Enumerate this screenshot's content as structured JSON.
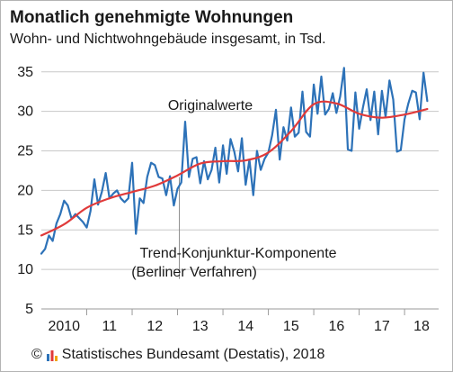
{
  "header": {
    "title": "Monatlich genehmigte Wohnungen",
    "subtitle": "Wohn- und Nichtwohngebäude insgesamt, in Tsd."
  },
  "footer": {
    "copyright_symbol": "©",
    "source_text": "Statistisches Bundesamt (Destatis), 2018"
  },
  "colors": {
    "original_series": "#2d72b8",
    "trend_series": "#e03a3a",
    "grid": "#c8c8c8",
    "annotation_line": "#8a8a8a",
    "logo_bars": [
      "#2d72b8",
      "#e03a3a",
      "#f0a400"
    ]
  },
  "chart_data": {
    "type": "line",
    "title": "Monatlich genehmigte Wohnungen",
    "subtitle": "Wohn- und Nichtwohngebäude insgesamt, in Tsd.",
    "ylim": [
      5,
      36
    ],
    "yticks": [
      5,
      10,
      15,
      20,
      25,
      30,
      35
    ],
    "xlim": [
      2010,
      2018.75
    ],
    "x_tick_labels": [
      {
        "label": "2010",
        "year": 2010
      },
      {
        "label": "11",
        "year": 2011
      },
      {
        "label": "12",
        "year": 2012
      },
      {
        "label": "13",
        "year": 2013
      },
      {
        "label": "14",
        "year": 2014
      },
      {
        "label": "15",
        "year": 2015
      },
      {
        "label": "16",
        "year": 2016
      },
      {
        "label": "17",
        "year": 2017
      },
      {
        "label": "18",
        "year": 2018
      }
    ],
    "grid": "horizontal",
    "annotations": [
      {
        "text": "Originalwerte",
        "series": "Originalwerte"
      },
      {
        "text": "Trend-Konjunktur-Komponente",
        "series": "Trend-Konjunktur-Komponente"
      },
      {
        "text": "(Berliner Verfahren)",
        "series": "Trend-Konjunktur-Komponente"
      }
    ],
    "annotation_pointer": {
      "x": 2013.04,
      "y_from": 21.7,
      "y_to": 8.8
    },
    "series": [
      {
        "name": "Originalwerte",
        "x": [
          2010.0,
          2010.083,
          2010.167,
          2010.25,
          2010.333,
          2010.417,
          2010.5,
          2010.583,
          2010.667,
          2010.75,
          2010.833,
          2010.917,
          2011.0,
          2011.083,
          2011.167,
          2011.25,
          2011.333,
          2011.417,
          2011.5,
          2011.583,
          2011.667,
          2011.75,
          2011.833,
          2011.917,
          2012.0,
          2012.083,
          2012.167,
          2012.25,
          2012.333,
          2012.417,
          2012.5,
          2012.583,
          2012.667,
          2012.75,
          2012.833,
          2012.917,
          2013.0,
          2013.083,
          2013.167,
          2013.25,
          2013.333,
          2013.417,
          2013.5,
          2013.583,
          2013.667,
          2013.75,
          2013.833,
          2013.917,
          2014.0,
          2014.083,
          2014.167,
          2014.25,
          2014.333,
          2014.417,
          2014.5,
          2014.583,
          2014.667,
          2014.75,
          2014.833,
          2014.917,
          2015.0,
          2015.083,
          2015.167,
          2015.25,
          2015.333,
          2015.417,
          2015.5,
          2015.583,
          2015.667,
          2015.75,
          2015.833,
          2015.917,
          2016.0,
          2016.083,
          2016.167,
          2016.25,
          2016.333,
          2016.417,
          2016.5,
          2016.583,
          2016.667,
          2016.75,
          2016.833,
          2016.917,
          2017.0,
          2017.083,
          2017.167,
          2017.25,
          2017.333,
          2017.417,
          2017.5,
          2017.583,
          2017.667,
          2017.75,
          2017.833,
          2017.917,
          2018.0,
          2018.083,
          2018.167,
          2018.25,
          2018.333,
          2018.417,
          2018.5
        ],
        "values": [
          12.0,
          12.6,
          14.3,
          13.6,
          15.8,
          17.0,
          18.7,
          18.1,
          16.4,
          17.0,
          16.5,
          16.0,
          15.3,
          17.4,
          21.4,
          18.2,
          19.8,
          22.2,
          19.0,
          19.6,
          20.0,
          19.0,
          18.5,
          19.0,
          23.5,
          14.5,
          19.0,
          18.4,
          21.7,
          23.5,
          23.2,
          21.7,
          21.5,
          19.4,
          21.8,
          18.1,
          20.2,
          21.0,
          28.7,
          21.7,
          24.0,
          24.2,
          20.9,
          23.7,
          21.4,
          22.6,
          25.4,
          21.0,
          25.7,
          22.1,
          26.5,
          24.9,
          22.4,
          26.6,
          20.7,
          23.9,
          19.4,
          25.0,
          22.6,
          24.0,
          24.8,
          27.0,
          30.2,
          23.9,
          28.0,
          26.3,
          30.5,
          26.8,
          27.3,
          32.5,
          27.4,
          26.8,
          33.4,
          29.7,
          34.4,
          29.6,
          30.3,
          32.3,
          29.8,
          31.9,
          35.5,
          25.2,
          25.0,
          32.4,
          27.8,
          30.5,
          32.8,
          28.9,
          32.5,
          27.1,
          32.6,
          29.3,
          33.9,
          31.5,
          24.9,
          25.1,
          29.0,
          31.0,
          32.6,
          32.4,
          29.0,
          34.9,
          31.3
        ]
      },
      {
        "name": "Trend-Konjunktur-Komponente",
        "x": [
          2010.0,
          2010.5,
          2011.0,
          2011.5,
          2012.0,
          2012.5,
          2013.0,
          2013.5,
          2014.0,
          2014.5,
          2015.0,
          2015.5,
          2016.0,
          2016.5,
          2017.0,
          2017.5,
          2018.0,
          2018.5
        ],
        "values": [
          14.3,
          15.7,
          17.8,
          19.0,
          19.8,
          20.6,
          21.9,
          23.4,
          23.7,
          23.8,
          24.8,
          27.5,
          30.9,
          31.0,
          29.7,
          29.2,
          29.6,
          30.3
        ]
      }
    ]
  }
}
